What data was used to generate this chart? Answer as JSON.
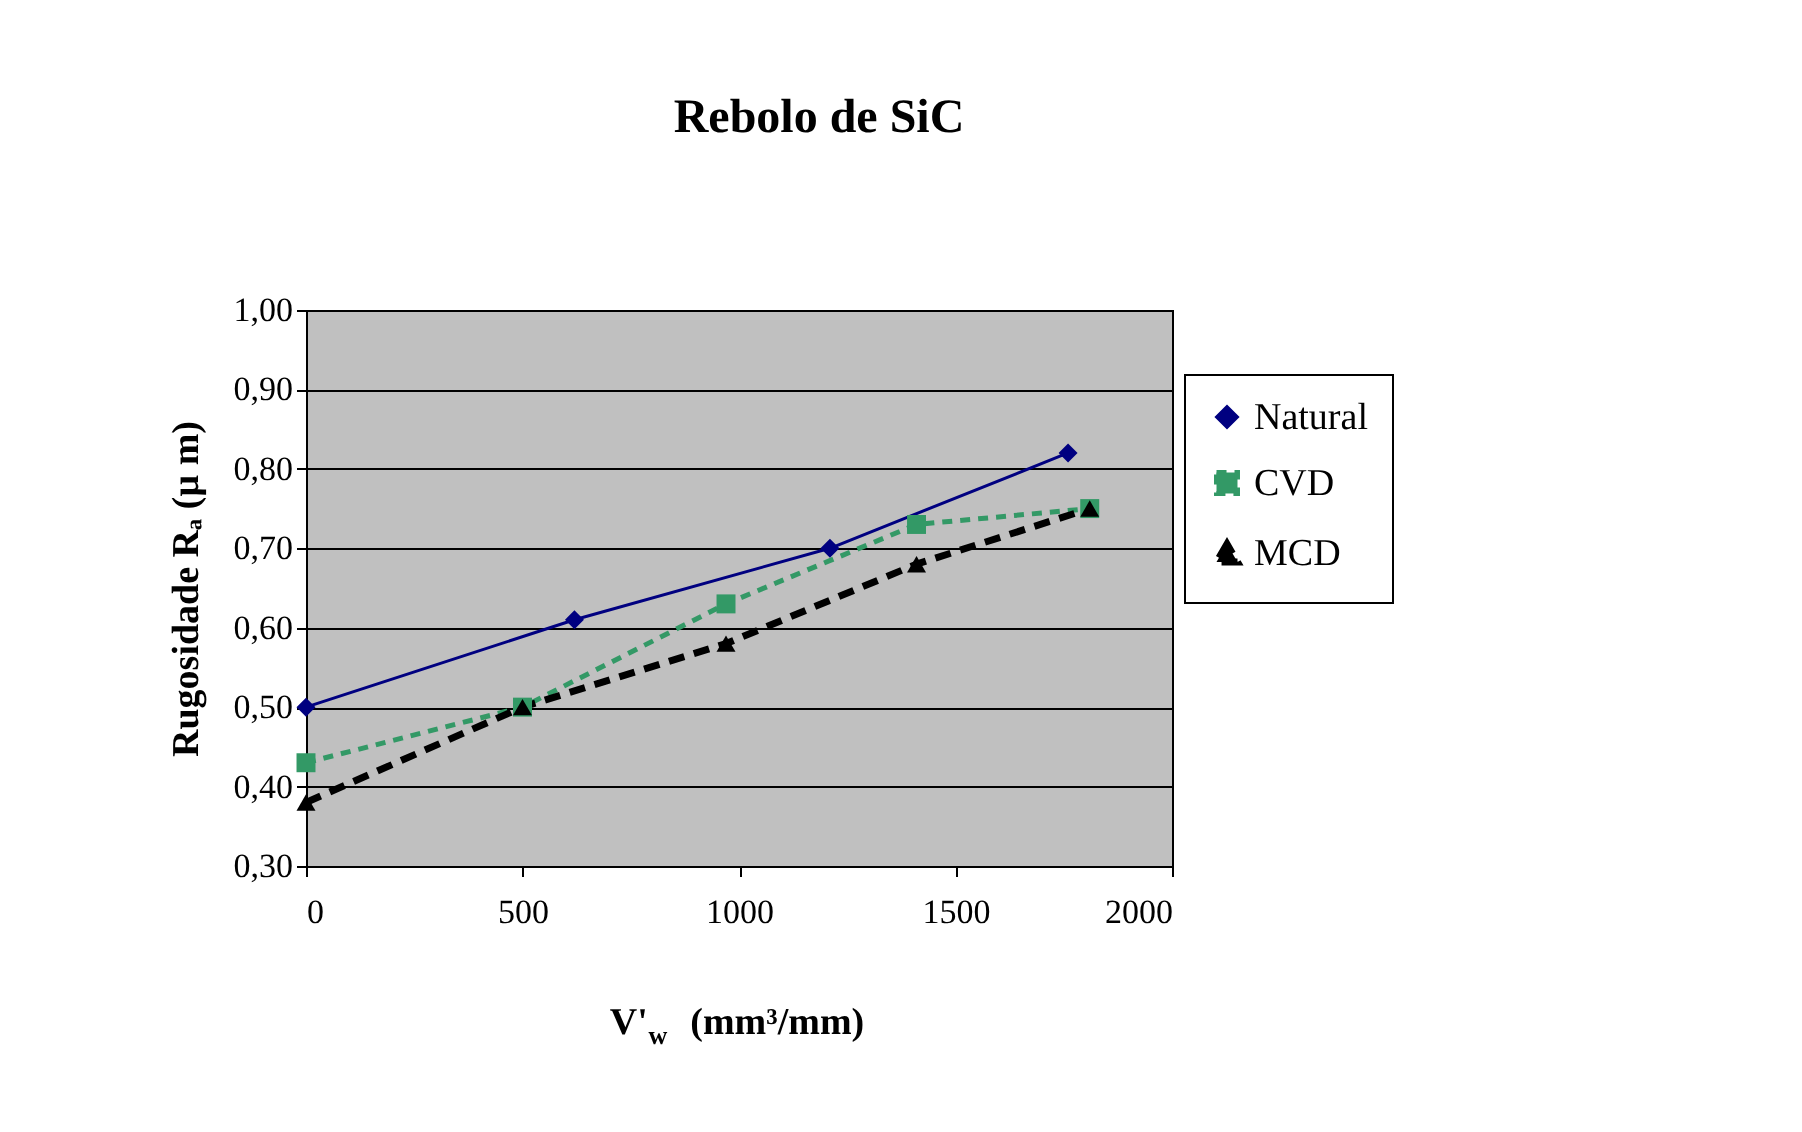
{
  "chart_data": {
    "type": "line",
    "title": "Rebolo de SiC",
    "xlabel": "V'$_{w}$ (mm³/mm)",
    "ylabel": "Rugosidade Rₐ (µ m)",
    "xlim": [
      0,
      2000
    ],
    "xticks": [
      0,
      500,
      1000,
      1500,
      2000
    ],
    "ylim": [
      0.3,
      1.0
    ],
    "yticks": [
      {
        "value": 0.3,
        "label": "0,30"
      },
      {
        "value": 0.4,
        "label": "0,40"
      },
      {
        "value": 0.5,
        "label": "0,50"
      },
      {
        "value": 0.6,
        "label": "0,60"
      },
      {
        "value": 0.7,
        "label": "0,70"
      },
      {
        "value": 0.8,
        "label": "0,80"
      },
      {
        "value": 0.9,
        "label": "0,90"
      },
      {
        "value": 1.0,
        "label": "1,00"
      }
    ],
    "grid": "y",
    "legend": "right",
    "series": [
      {
        "name": "Natural",
        "color": "#000080",
        "marker": "diamond",
        "line_style": "solid",
        "x": [
          0,
          620,
          1210,
          1760
        ],
        "values": [
          0.5,
          0.61,
          0.7,
          0.82
        ]
      },
      {
        "name": "CVD",
        "color": "#339966",
        "marker": "square",
        "line_style": "dotted",
        "x": [
          0,
          500,
          970,
          1410,
          1810
        ],
        "values": [
          0.43,
          0.5,
          0.63,
          0.73,
          0.75
        ]
      },
      {
        "name": "MCD",
        "color": "#000000",
        "marker": "triangle",
        "line_style": "dashed",
        "x": [
          0,
          500,
          970,
          1410,
          1810
        ],
        "values": [
          0.38,
          0.5,
          0.58,
          0.68,
          0.75
        ]
      }
    ]
  }
}
